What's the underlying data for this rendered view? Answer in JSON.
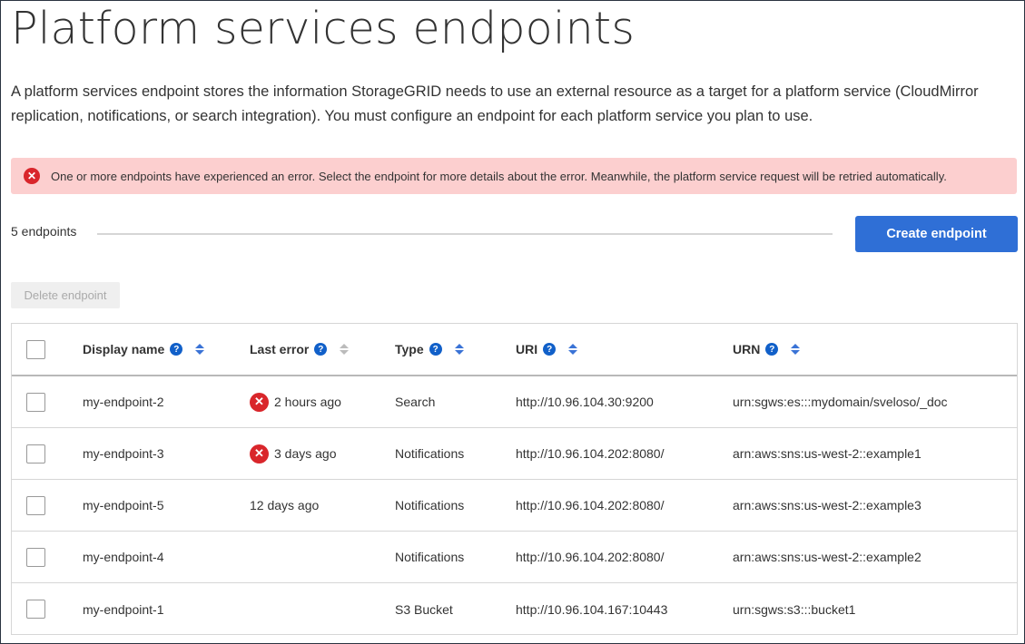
{
  "page": {
    "title": "Platform services endpoints",
    "description": "A platform services endpoint stores the information StorageGRID needs to use an external resource as a target for a platform service (CloudMirror replication, notifications, or search integration). You must configure an endpoint for each platform service you plan to use."
  },
  "alert": {
    "icon": "error-circle-icon",
    "text": "One or more endpoints have experienced an error. Select the endpoint for more details about the error. Meanwhile, the platform service request will be retried automatically.",
    "color": "#fccfcf"
  },
  "toolbar": {
    "count": "5 endpoints",
    "create_label": "Create endpoint",
    "delete_label": "Delete endpoint",
    "accent": "#2f6fd6"
  },
  "table": {
    "columns": [
      "Display name",
      "Last error",
      "Type",
      "URI",
      "URN"
    ],
    "rows": [
      {
        "name": "my-endpoint-2",
        "error": "2 hours ago",
        "has_error": true,
        "type": "Search",
        "uri": "http://10.96.104.30:9200",
        "urn": "urn:sgws:es:::mydomain/sveloso/_doc"
      },
      {
        "name": "my-endpoint-3",
        "error": "3 days ago",
        "has_error": true,
        "type": "Notifications",
        "uri": "http://10.96.104.202:8080/",
        "urn": "arn:aws:sns:us-west-2::example1"
      },
      {
        "name": "my-endpoint-5",
        "error": "12 days ago",
        "has_error": false,
        "type": "Notifications",
        "uri": "http://10.96.104.202:8080/",
        "urn": "arn:aws:sns:us-west-2::example3"
      },
      {
        "name": "my-endpoint-4",
        "error": "",
        "has_error": false,
        "type": "Notifications",
        "uri": "http://10.96.104.202:8080/",
        "urn": "arn:aws:sns:us-west-2::example2"
      },
      {
        "name": "my-endpoint-1",
        "error": "",
        "has_error": false,
        "type": "S3 Bucket",
        "uri": "http://10.96.104.167:10443",
        "urn": "urn:sgws:s3:::bucket1"
      }
    ]
  }
}
